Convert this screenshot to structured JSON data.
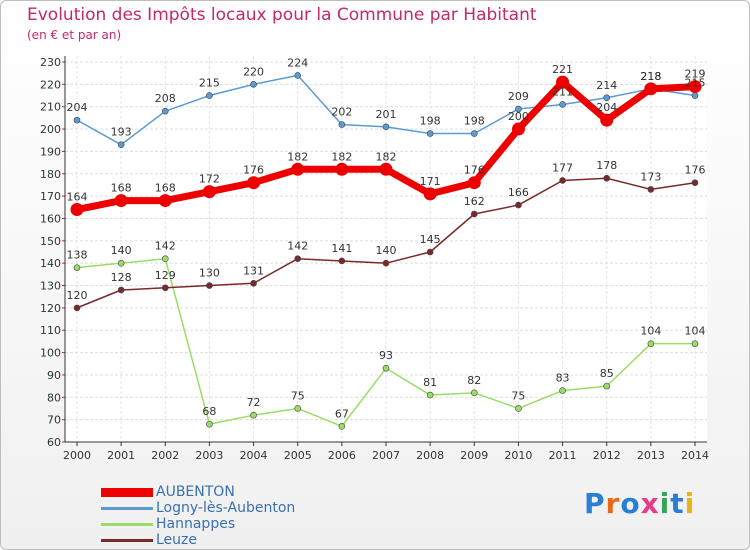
{
  "chart_data": {
    "type": "line",
    "title": "Evolution des Impôts locaux pour la Commune par Habitant",
    "subtitle": "(en € et par an)",
    "xlabel": "",
    "ylabel": "",
    "categories": [
      "2000",
      "2001",
      "2002",
      "2003",
      "2004",
      "2005",
      "2006",
      "2007",
      "2008",
      "2009",
      "2010",
      "2011",
      "2012",
      "2013",
      "2014"
    ],
    "ylim": [
      60,
      230
    ],
    "yticks": [
      "60",
      "70",
      "80",
      "90",
      "100",
      "110",
      "120",
      "130",
      "140",
      "150",
      "160",
      "170",
      "180",
      "190",
      "200",
      "210",
      "220",
      "230"
    ],
    "grid": true,
    "legend_position": "bottom-left",
    "series": [
      {
        "name": "AUBENTON",
        "color": "#ee0000",
        "values": [
          164,
          168,
          168,
          172,
          176,
          182,
          182,
          182,
          171,
          176,
          200,
          221,
          204,
          218,
          219
        ],
        "labels": [
          "164",
          "168",
          "168",
          "172",
          "176",
          "182",
          "182",
          "182",
          "171",
          "176",
          "200",
          "221",
          "204",
          "218",
          "219"
        ]
      },
      {
        "name": "Logny-lès-Aubenton",
        "color": "#5b9bd5",
        "values": [
          204,
          193,
          208,
          215,
          220,
          224,
          202,
          201,
          198,
          198,
          209,
          211,
          214,
          218,
          215
        ],
        "labels": [
          "204",
          "193",
          "208",
          "215",
          "220",
          "224",
          "202",
          "201",
          "198",
          "198",
          "209",
          "211",
          "214",
          "218",
          "215"
        ]
      },
      {
        "name": "Hannappes",
        "color": "#99dd66",
        "values": [
          138,
          140,
          142,
          68,
          72,
          75,
          67,
          93,
          81,
          82,
          75,
          83,
          85,
          104,
          104
        ],
        "labels": [
          "138",
          "140",
          "142",
          "68",
          "72",
          "75",
          "67",
          "93",
          "81",
          "82",
          "75",
          "83",
          "85",
          "104",
          "104"
        ]
      },
      {
        "name": "Leuze",
        "color": "#7a2a2a",
        "values": [
          120,
          128,
          129,
          130,
          131,
          142,
          141,
          140,
          145,
          162,
          166,
          177,
          178,
          173,
          176
        ],
        "labels": [
          "120",
          "128",
          "129",
          "130",
          "131",
          "142",
          "141",
          "140",
          "145",
          "162",
          "166",
          "177",
          "178",
          "173",
          "176"
        ]
      }
    ]
  },
  "logo": {
    "text": "Proxiti",
    "colors": [
      "#2a7fd4",
      "#e86a1a",
      "#2a7fd4",
      "#ea3a8a",
      "#3aa35a",
      "#2a7fd4",
      "#e8b21a"
    ]
  }
}
